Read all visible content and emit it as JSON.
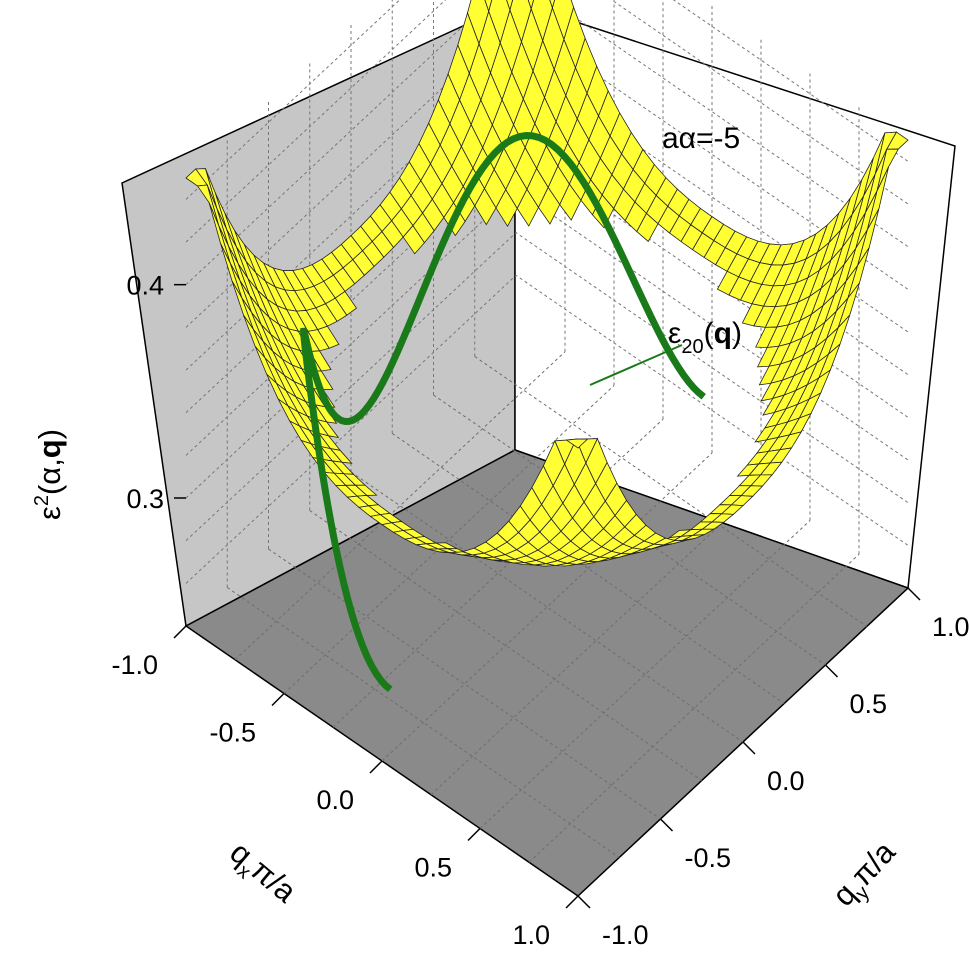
{
  "chart_data": {
    "type": "surface3d",
    "z_axis": {
      "label_parts": [
        "ε",
        "2",
        "(α,",
        "q",
        ")"
      ],
      "ticks": [
        {
          "value": 0.3,
          "label": "0.3"
        },
        {
          "value": 0.4,
          "label": "0.4"
        }
      ],
      "zlim": [
        0.24,
        0.45
      ]
    },
    "x_axis": {
      "label_parts": [
        "q",
        "x",
        "π/a"
      ],
      "ticks": [
        {
          "value": -1.0,
          "label": "-1.0"
        },
        {
          "value": -0.5,
          "label": "-0.5"
        },
        {
          "value": 0.0,
          "label": "0.0"
        },
        {
          "value": 0.5,
          "label": "0.5"
        },
        {
          "value": 1.0,
          "label": "1.0"
        }
      ],
      "xlim": [
        -1,
        1
      ]
    },
    "y_axis": {
      "label_parts": [
        "q",
        "y",
        "π/a"
      ],
      "ticks": [
        {
          "value": -1.0,
          "label": "-1.0"
        },
        {
          "value": -0.5,
          "label": "-0.5"
        },
        {
          "value": 0.0,
          "label": "0.0"
        },
        {
          "value": 0.5,
          "label": "0.5"
        },
        {
          "value": 1.0,
          "label": "1.0"
        }
      ],
      "ylim": [
        -1,
        1
      ]
    },
    "annotations": {
      "parameter": "aα=-5",
      "curve_label_parts": [
        "ε",
        "20",
        "(",
        "q",
        ")"
      ]
    },
    "surface": {
      "description_value_samples": [
        {
          "x": 0,
          "y": 0,
          "z": 0.305
        },
        {
          "x": 1,
          "y": 1,
          "z": 0.44
        },
        {
          "x": -1,
          "y": -1,
          "z": 0.42
        },
        {
          "x": -1,
          "y": 1,
          "z": 0.42
        },
        {
          "x": 1,
          "y": -1,
          "z": 0.42
        },
        {
          "x": 1,
          "y": 0,
          "z": 0.33
        },
        {
          "x": 0,
          "y": 1,
          "z": 0.33
        }
      ],
      "domain": "disk radius 1 removed from square"
    },
    "curve_z_range": [
      0.27,
      0.37
    ],
    "colors": {
      "surface": "#ffff33",
      "surface_shadow": "#8c8c14",
      "curve": "#1a7a1a",
      "back_wall": "#c8c8c8",
      "floor": "#8a8a8a",
      "grid": "#777777"
    },
    "grid": true
  }
}
